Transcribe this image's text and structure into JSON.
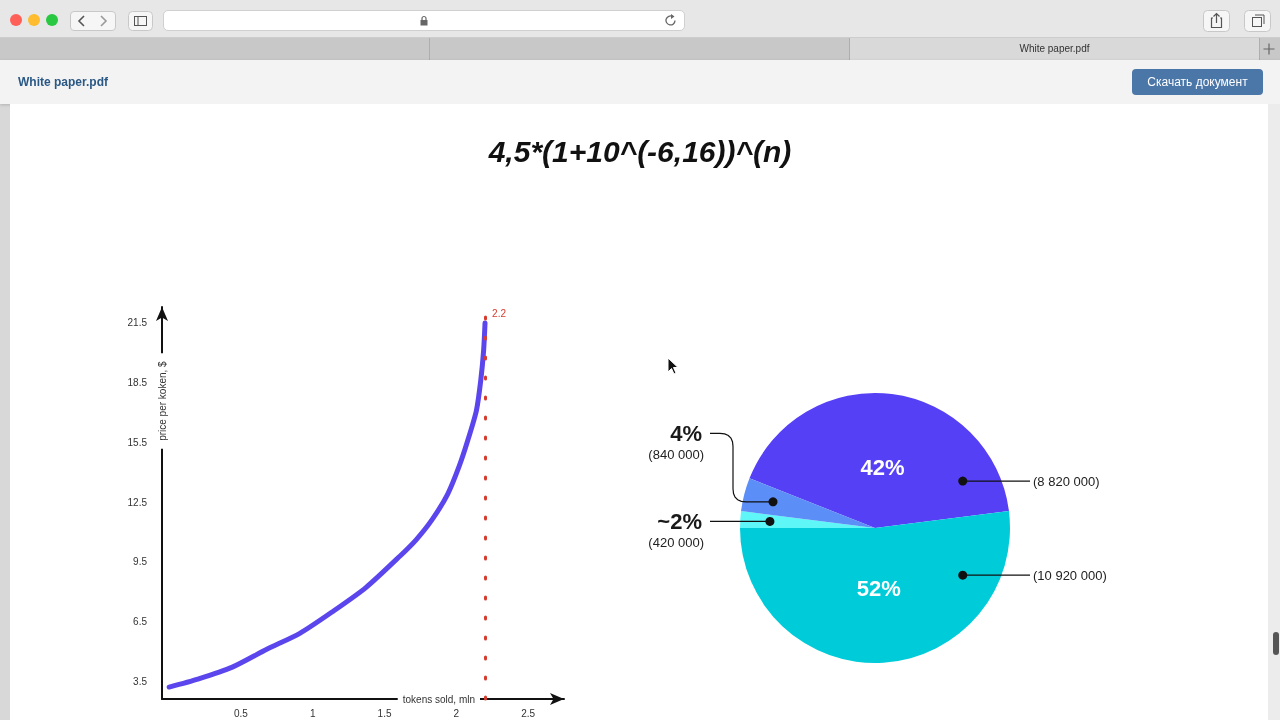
{
  "chart_data": [
    {
      "type": "line",
      "title": "4,5*(1+10^(-6,16))^(n)",
      "xlabel": "tokens sold, mln",
      "ylabel": "price per koken, $",
      "x": [
        0,
        0.2,
        0.44,
        0.68,
        0.91,
        1.14,
        1.37,
        1.61,
        1.72,
        1.83,
        1.94,
        2.02,
        2.08,
        2.14,
        2.17,
        2.19,
        2.2
      ],
      "values": [
        3.2,
        3.6,
        4.2,
        5.1,
        5.9,
        7.0,
        8.2,
        9.8,
        10.6,
        11.6,
        12.9,
        14.3,
        15.6,
        17.1,
        18.6,
        20.1,
        21.5
      ],
      "color": "#5b46ee",
      "marker": "none",
      "line_style": "solid",
      "xlim": [
        -0.05,
        2.75
      ],
      "xticks": [
        0.5,
        1,
        1.5,
        2,
        2.5
      ],
      "ylim": [
        2.6,
        22.3
      ],
      "yticks": [
        3.5,
        6.5,
        9.5,
        12.5,
        15.5,
        18.5,
        21.5
      ],
      "ref_lines": [
        {
          "axis": "x",
          "value": 2.2,
          "label": "2.2",
          "color": "#d63c2e",
          "line_style": "dotted"
        }
      ],
      "annotations": [
        "White paper.pdf",
        "White paper.pdf",
        "Скачать документ"
      ]
    },
    {
      "type": "pie",
      "categories": [
        "(8 820 000)",
        "(10 920 000)",
        "(420 000)",
        "(840 000)"
      ],
      "values": [
        42,
        52,
        2,
        4
      ],
      "value_labels": [
        "42%",
        "52%",
        "~2%",
        "4%"
      ],
      "colors": [
        "#5640f6",
        "#00ccd9",
        "#5ef6f7",
        "#5b8ef6"
      ]
    }
  ]
}
